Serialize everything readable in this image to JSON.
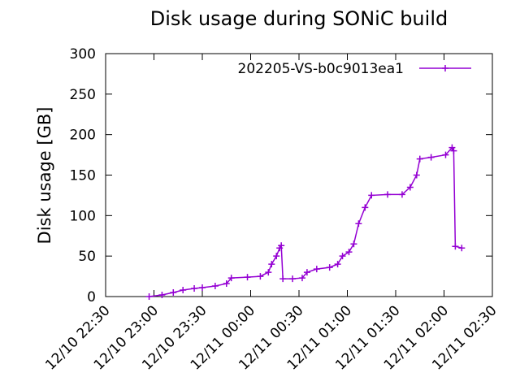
{
  "chart_data": {
    "type": "line",
    "title": "Disk usage during SONiC build",
    "y_label": "Disk usage [GB]",
    "series": [
      {
        "name": "202205-VS-b0c9013ea1",
        "color": "#9400d3",
        "x": [
          "12/10 22:57",
          "12/10 23:05",
          "12/10 23:12",
          "12/10 23:18",
          "12/10 23:25",
          "12/10 23:30",
          "12/10 23:38",
          "12/10 23:45",
          "12/10 23:48",
          "12/10 23:58",
          "12/11 00:06",
          "12/11 00:11",
          "12/11 00:13",
          "12/11 00:16",
          "12/11 00:18",
          "12/11 00:19",
          "12/11 00:20",
          "12/11 00:26",
          "12/11 00:32",
          "12/11 00:35",
          "12/11 00:41",
          "12/11 00:49",
          "12/11 00:54",
          "12/11 00:57",
          "12/11 01:01",
          "12/11 01:04",
          "12/11 01:07",
          "12/11 01:11",
          "12/11 01:15",
          "12/11 01:25",
          "12/11 01:34",
          "12/11 01:39",
          "12/11 01:43",
          "12/11 01:45",
          "12/11 01:52",
          "12/11 02:01",
          "12/11 02:05",
          "12/11 02:06",
          "12/11 02:07",
          "12/11 02:11"
        ],
        "values": [
          0,
          2,
          5,
          8,
          10,
          11,
          13,
          16,
          23,
          24,
          25,
          30,
          40,
          50,
          60,
          63,
          22,
          22,
          23,
          30,
          34,
          36,
          40,
          50,
          55,
          65,
          90,
          110,
          125,
          126,
          126,
          135,
          150,
          170,
          172,
          175,
          184,
          180,
          62,
          60
        ]
      }
    ],
    "xlim": [
      "12/10 22:30",
      "12/11 02:30"
    ],
    "xticks": [
      "12/10 22:30",
      "12/10 23:00",
      "12/10 23:30",
      "12/11 00:00",
      "12/11 00:30",
      "12/11 01:00",
      "12/11 01:30",
      "12/11 02:00",
      "12/11 02:30"
    ],
    "ylim": [
      0,
      300
    ],
    "yticks": [
      0,
      50,
      100,
      150,
      200,
      250,
      300
    ],
    "legend": "top-right"
  }
}
